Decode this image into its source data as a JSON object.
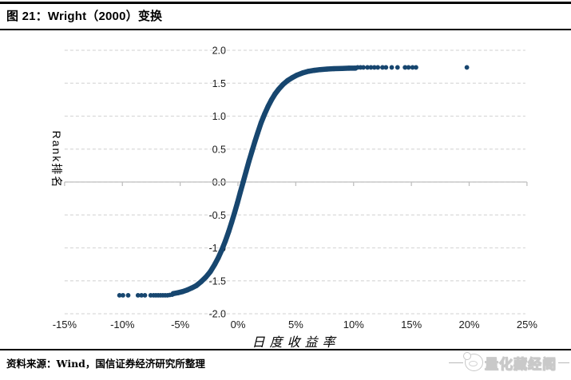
{
  "header": {
    "title": "图 21：Wright（2000）变换"
  },
  "footer": {
    "source": "资料来源：Wind，国信证券经济研究所整理"
  },
  "watermark": {
    "text": "量化藏经阁",
    "icon": "mascot-icon"
  },
  "chart_data": {
    "type": "scatter",
    "title": "Wright（2000）变换",
    "xlabel": "日度收益率",
    "ylabel": "Rank排名",
    "xlim": [
      -15,
      25
    ],
    "ylim": [
      -2,
      2
    ],
    "x_unit": "percent",
    "grid": "horizontal-dashed",
    "legend": "none",
    "point_color": "#17466f",
    "gridline_color": "#d9d9d9",
    "axis_color": "#bfbfbf",
    "tick_label_color": "#1a1a1a",
    "x_ticks": [
      -15,
      -10,
      -5,
      0,
      5,
      10,
      15,
      20,
      25
    ],
    "x_tick_labels": [
      "-15%",
      "-10%",
      "-5%",
      "0%",
      "5%",
      "10%",
      "15%",
      "20%",
      "25%"
    ],
    "y_ticks": [
      2,
      1.5,
      1,
      0.5,
      0,
      -0.5,
      -1,
      -1.5,
      -2
    ],
    "y_tick_labels": [
      "2.0",
      "1.5",
      "1.0",
      "0.5",
      "0.0",
      "-0.5",
      "-1.0",
      "-1.5",
      "-2.0"
    ],
    "series": [
      {
        "name": "dense_rank_curve",
        "style": "dense-scatter-band",
        "points": [
          [
            -5.6,
            -1.694
          ],
          [
            -5.2,
            -1.681
          ],
          [
            -4.8,
            -1.664
          ],
          [
            -4.4,
            -1.64
          ],
          [
            -4.0,
            -1.608
          ],
          [
            -3.6,
            -1.572
          ],
          [
            -3.2,
            -1.515
          ],
          [
            -2.8,
            -1.447
          ],
          [
            -2.4,
            -1.362
          ],
          [
            -2.0,
            -1.247
          ],
          [
            -1.7,
            -1.148
          ],
          [
            -1.4,
            -1.033
          ],
          [
            -1.1,
            -0.899
          ],
          [
            -0.8,
            -0.751
          ],
          [
            -0.55,
            -0.615
          ],
          [
            -0.3,
            -0.468
          ],
          [
            -0.05,
            -0.316
          ],
          [
            0.2,
            -0.155
          ],
          [
            0.45,
            0.0
          ],
          [
            0.7,
            0.158
          ],
          [
            0.95,
            0.318
          ],
          [
            1.2,
            0.463
          ],
          [
            1.45,
            0.607
          ],
          [
            1.7,
            0.742
          ],
          [
            2.0,
            0.898
          ],
          [
            2.3,
            1.03
          ],
          [
            2.6,
            1.147
          ],
          [
            2.9,
            1.248
          ],
          [
            3.2,
            1.335
          ],
          [
            3.5,
            1.405
          ],
          [
            3.9,
            1.482
          ],
          [
            4.3,
            1.541
          ],
          [
            4.7,
            1.585
          ],
          [
            5.1,
            1.623
          ],
          [
            5.6,
            1.657
          ],
          [
            6.1,
            1.681
          ],
          [
            6.6,
            1.696
          ],
          [
            7.1,
            1.707
          ],
          [
            7.7,
            1.715
          ],
          [
            8.3,
            1.721
          ],
          [
            9.0,
            1.725
          ],
          [
            9.6,
            1.728
          ],
          [
            10.15,
            1.729
          ]
        ]
      },
      {
        "name": "lower_tail_outliers",
        "style": "dots",
        "points": [
          [
            -10.25,
            -1.72
          ],
          [
            -9.95,
            -1.72
          ],
          [
            -9.5,
            -1.72
          ],
          [
            -8.65,
            -1.72
          ],
          [
            -8.35,
            -1.72
          ],
          [
            -8.05,
            -1.72
          ],
          [
            -7.55,
            -1.72
          ],
          [
            -7.3,
            -1.72
          ],
          [
            -7.1,
            -1.72
          ],
          [
            -6.9,
            -1.72
          ],
          [
            -6.7,
            -1.72
          ],
          [
            -6.5,
            -1.72
          ],
          [
            -6.3,
            -1.72
          ],
          [
            -6.1,
            -1.72
          ],
          [
            -5.9,
            -1.715
          ],
          [
            -5.7,
            -1.71
          ]
        ]
      },
      {
        "name": "upper_tail_outliers",
        "style": "dots",
        "points": [
          [
            10.35,
            1.74
          ],
          [
            10.6,
            1.74
          ],
          [
            10.85,
            1.74
          ],
          [
            11.2,
            1.74
          ],
          [
            11.5,
            1.74
          ],
          [
            11.8,
            1.74
          ],
          [
            12.1,
            1.74
          ],
          [
            12.5,
            1.74
          ],
          [
            12.8,
            1.74
          ],
          [
            13.3,
            1.74
          ],
          [
            13.8,
            1.74
          ],
          [
            14.45,
            1.74
          ],
          [
            14.75,
            1.74
          ],
          [
            15.1,
            1.74
          ],
          [
            15.4,
            1.74
          ],
          [
            19.8,
            1.74
          ]
        ]
      }
    ]
  }
}
